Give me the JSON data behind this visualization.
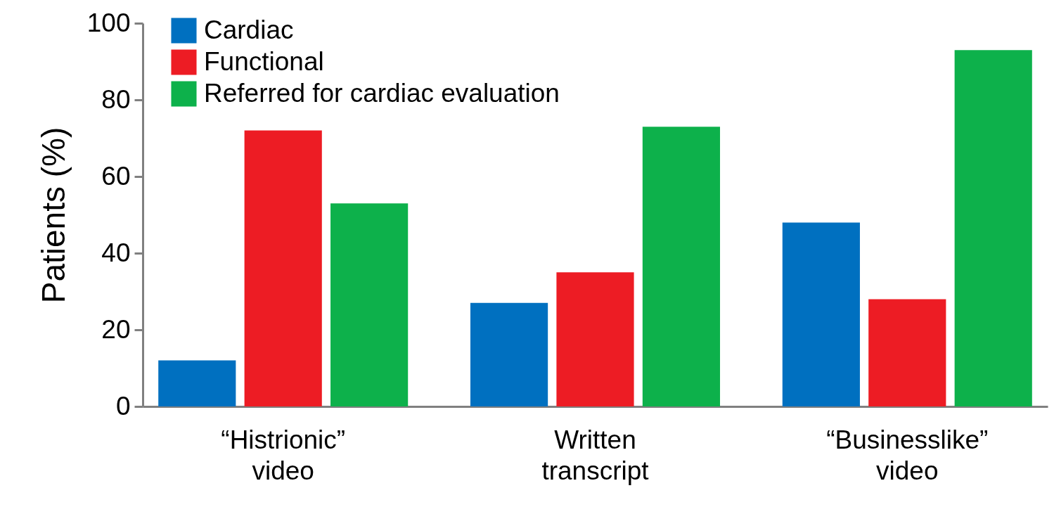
{
  "chart_data": {
    "type": "bar",
    "ylabel": "Patients (%)",
    "categories": [
      "“Histrionic” video",
      "Written transcript",
      "“Businesslike” video"
    ],
    "series": [
      {
        "name": "Cardiac",
        "color": "#0070c0",
        "values": [
          12,
          27,
          48
        ]
      },
      {
        "name": "Functional",
        "color": "#ed1c24",
        "values": [
          72,
          35,
          28
        ]
      },
      {
        "name": "Referred for cardiac evaluation",
        "color": "#0db14b",
        "values": [
          53,
          73,
          93
        ]
      }
    ],
    "ylim": [
      0,
      100
    ],
    "yticks": [
      0,
      20,
      40,
      60,
      80,
      100
    ],
    "grid": false,
    "legend": "top left"
  }
}
